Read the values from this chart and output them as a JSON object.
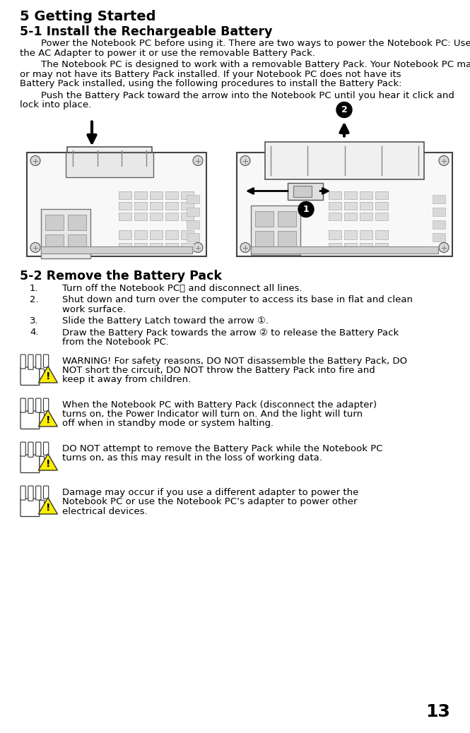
{
  "title": "5 Getting Started",
  "section1_title": "5-1 Install the Rechargeable Battery",
  "section1_para1": "Power the Notebook PC before using it. There are two ways to power the Notebook PC: Use the AC Adapter to power it or use the removable Battery Pack.",
  "section1_para2": "The Notebook PC is designed to work with a removable Battery Pack. Your Notebook PC may or may not have its Battery Pack installed. If your Notebook PC does not have its Battery Pack installed, using the following procedures to install the Battery Pack:",
  "section1_para3": "Push the Battery Pack toward the arrow into the Notebook PC until you hear it click and lock into place.",
  "section2_title": "5-2 Remove the Battery Pack",
  "steps": [
    [
      "1.",
      "Turn off the Notebook PC， and disconnect all lines."
    ],
    [
      "2.",
      "Shut down and turn over the computer to access its base in flat and clean work surface."
    ],
    [
      "3.",
      "Slide the Battery Latch toward the arrow ①."
    ],
    [
      "4.",
      "Draw the Battery Pack towards the arrow  ②  to release the Battery Pack from the Notebook PC."
    ]
  ],
  "warnings": [
    "WARNING! For safety reasons, DO NOT disassemble the Battery Pack, DO NOT short the circuit, DO NOT throw the Battery Pack into fire and keep it away from children.",
    "When the Notebook PC with Battery Pack (disconnect the adapter) turns on, the Power Indicator will turn on. And the light will turn off when in standby mode or system halting.",
    "DO NOT attempt to remove the Battery Pack while the Notebook PC turns on, as this may result in the loss of working data.",
    "Damage may occur if you use a different adapter to power the Notebook PC or use the Notebook PC’s adapter to power other electrical devices."
  ],
  "page_number": "13",
  "bg_color": "#ffffff",
  "text_color": "#000000"
}
